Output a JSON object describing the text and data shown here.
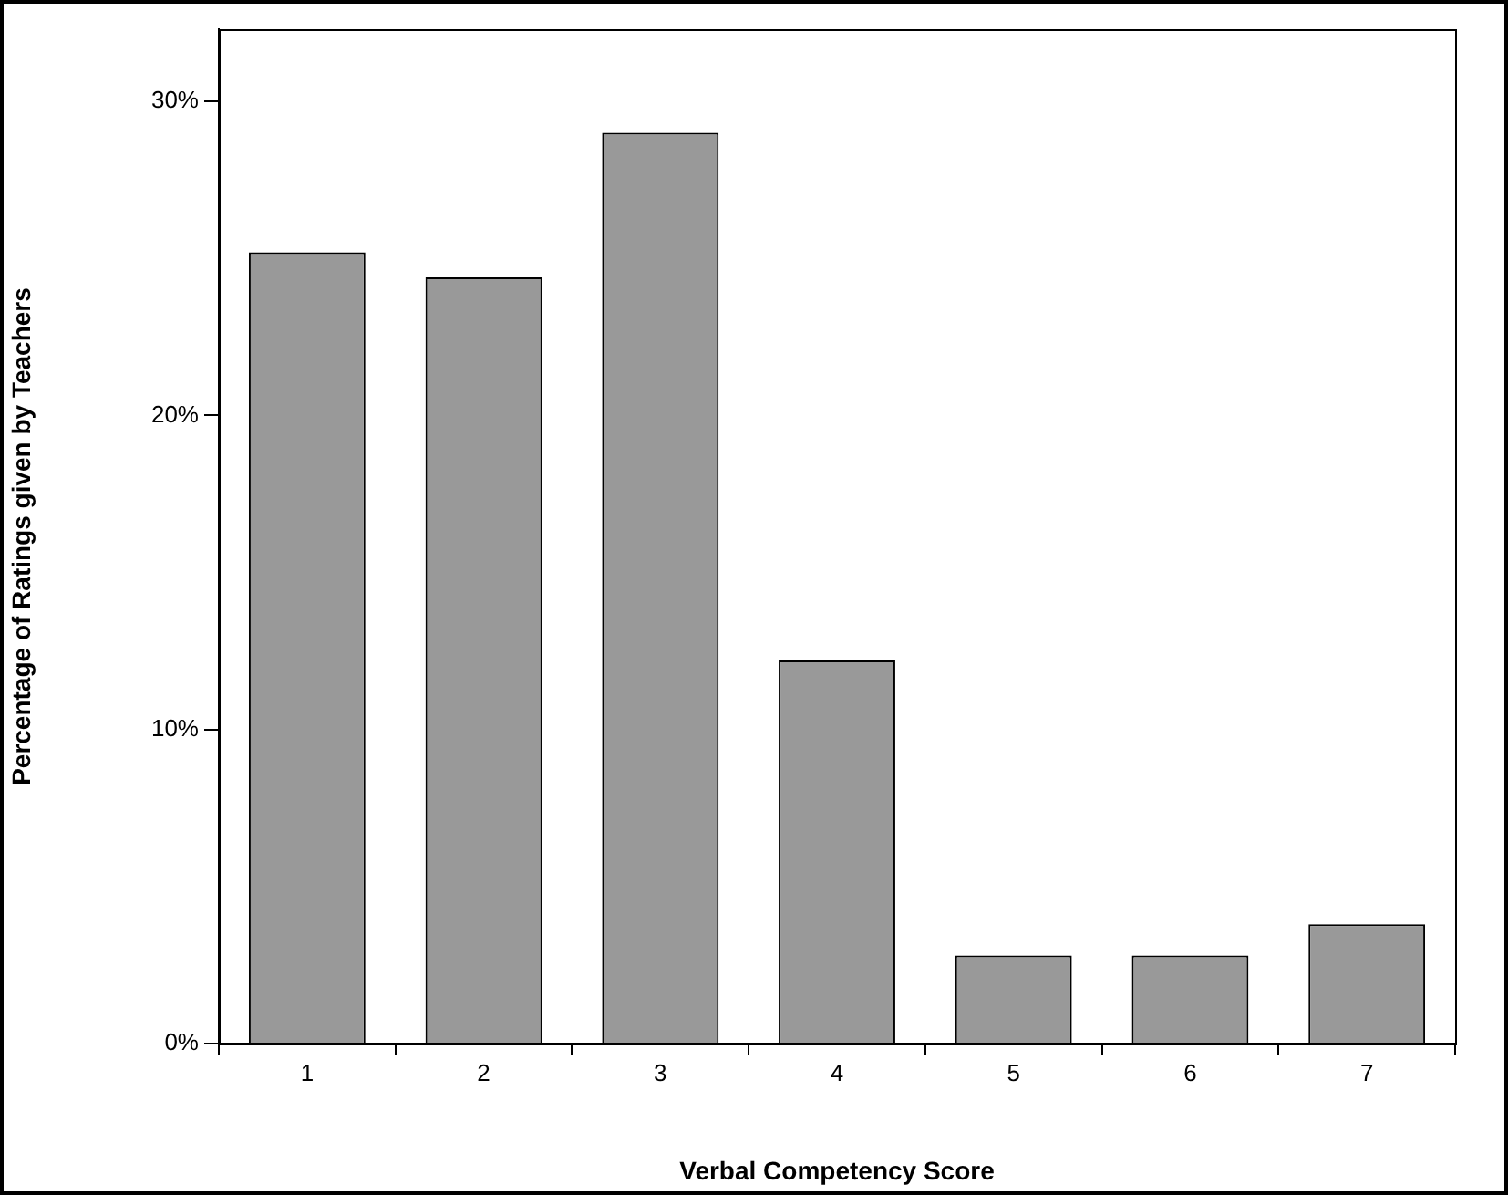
{
  "chart_data": {
    "type": "bar",
    "xlabel": "Verbal Competency Score",
    "ylabel": "Percentage of Ratings given by Teachers",
    "categories": [
      "1",
      "2",
      "3",
      "4",
      "5",
      "6",
      "7"
    ],
    "values": [
      25.2,
      24.4,
      29.0,
      12.2,
      2.8,
      2.8,
      3.8
    ],
    "color": "#999999",
    "ylim": [
      0,
      32.3
    ],
    "yticks": [
      {
        "value": 0,
        "label": "0%"
      },
      {
        "value": 10,
        "label": "10%"
      },
      {
        "value": 20,
        "label": "20%"
      },
      {
        "value": 30,
        "label": "30%"
      }
    ],
    "grid": false,
    "legend": false
  }
}
